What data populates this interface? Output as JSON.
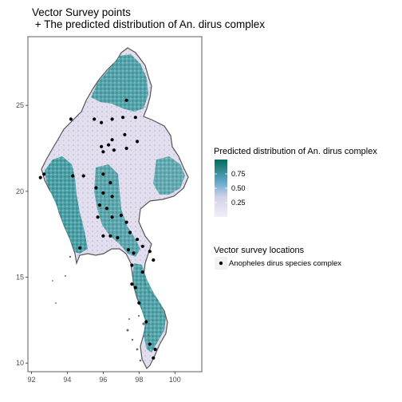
{
  "title_line1": "Vector Survey points",
  "title_line2": " + The predicted distribution of An. dirus complex",
  "legend": {
    "fill_title": "Predicted distribution of An. dirus complex",
    "fill_breaks": [
      "0.75",
      "0.50",
      "0.25"
    ],
    "points_title": "Vector survey locations",
    "points_label": "Anopheles dirus species complex"
  },
  "colors": {
    "low": "#e7e1ef",
    "mid": "#5fb0bb",
    "high": "#016c59",
    "coast": "#555555",
    "point": "#000000"
  },
  "chart_data": {
    "type": "map",
    "x_ticks": [
      "92",
      "94",
      "96",
      "98",
      "100"
    ],
    "y_ticks": [
      "10",
      "15",
      "20",
      "25"
    ],
    "xlim": [
      91.8,
      101.5
    ],
    "ylim": [
      9.5,
      29.0
    ],
    "fill_range": [
      0,
      1
    ],
    "survey_points": [
      [
        97.3,
        25.3
      ],
      [
        96.5,
        24.2
      ],
      [
        97.1,
        24.3
      ],
      [
        97.8,
        24.3
      ],
      [
        95.9,
        24.0
      ],
      [
        95.5,
        24.2
      ],
      [
        94.2,
        24.2
      ],
      [
        97.2,
        23.3
      ],
      [
        96.5,
        23.0
      ],
      [
        96.3,
        22.7
      ],
      [
        96.6,
        22.4
      ],
      [
        97.3,
        22.5
      ],
      [
        96.0,
        22.3
      ],
      [
        95.9,
        22.6
      ],
      [
        97.9,
        22.9
      ],
      [
        92.7,
        21.0
      ],
      [
        94.3,
        20.9
      ],
      [
        94.9,
        20.9
      ],
      [
        96.0,
        21.0
      ],
      [
        96.4,
        20.5
      ],
      [
        95.6,
        20.2
      ],
      [
        96.0,
        19.9
      ],
      [
        96.5,
        19.7
      ],
      [
        95.8,
        19.2
      ],
      [
        96.2,
        19.0
      ],
      [
        96.5,
        18.5
      ],
      [
        97.0,
        18.6
      ],
      [
        97.3,
        18.2
      ],
      [
        95.7,
        18.5
      ],
      [
        96.0,
        17.4
      ],
      [
        96.4,
        17.4
      ],
      [
        96.8,
        17.3
      ],
      [
        97.5,
        17.6
      ],
      [
        97.9,
        17.2
      ],
      [
        98.2,
        16.8
      ],
      [
        97.4,
        16.6
      ],
      [
        97.7,
        16.4
      ],
      [
        98.6,
        16.5
      ],
      [
        98.8,
        16.0
      ],
      [
        97.6,
        15.7
      ],
      [
        98.2,
        15.3
      ],
      [
        97.8,
        14.4
      ],
      [
        97.6,
        14.6
      ],
      [
        98.0,
        13.5
      ],
      [
        98.4,
        12.4
      ],
      [
        98.6,
        11.1
      ],
      [
        98.8,
        10.3
      ],
      [
        98.9,
        10.8
      ],
      [
        94.7,
        16.7
      ],
      [
        92.5,
        20.8
      ]
    ]
  }
}
